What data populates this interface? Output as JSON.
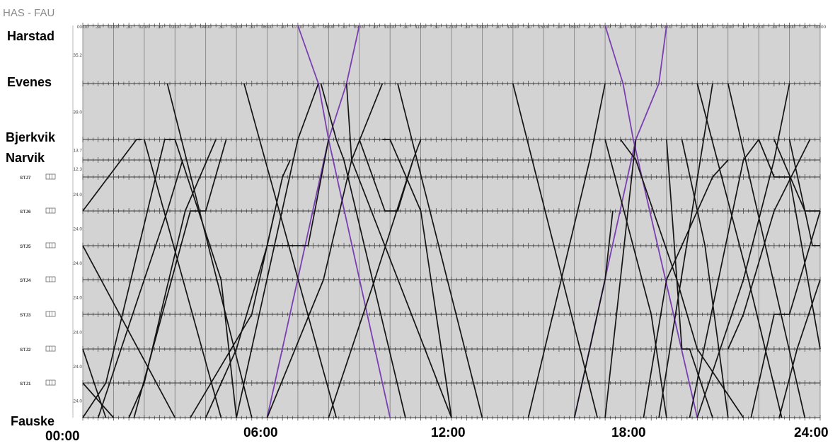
{
  "title": "HAS - FAU",
  "colors": {
    "plot_bg": "#d3d3d3",
    "grid": "#7c7c7c",
    "station_line": "#3a3a3a",
    "train": "#141414",
    "highlight_train": "#7a3fb0"
  },
  "time_ticks": [
    "00.00",
    ".30",
    "01.00",
    ".30",
    "02.00",
    ".30",
    "03.00",
    ".30",
    "04.00",
    ".30",
    "05.00",
    ".30",
    "06.00",
    ".30",
    "07.00",
    ".30",
    "08.00",
    ".30",
    "09.00",
    ".30",
    "10.00",
    ".30",
    "11.00",
    ".30",
    "12.00",
    ".30",
    "13.00",
    ".30",
    "14.00",
    ".30",
    "15.00",
    ".30",
    "16.00",
    ".30",
    "17.00",
    ".30",
    "18.00",
    ".30",
    "19.00",
    ".30",
    "20.00",
    ".30",
    "21.00",
    ".30",
    "22.00",
    ".30",
    "23.00",
    ".30",
    "00.00"
  ],
  "stations": [
    {
      "id": "harstad",
      "label": "Harstad",
      "code": ""
    },
    {
      "id": "evenes",
      "label": "Evenes",
      "code": ""
    },
    {
      "id": "bjerkvik",
      "label": "Bjerkvik",
      "code": ""
    },
    {
      "id": "narvik",
      "label": "Narvik",
      "code": ""
    },
    {
      "id": "stj7",
      "label": "",
      "code": "STJ7"
    },
    {
      "id": "stj6",
      "label": "",
      "code": "STJ6"
    },
    {
      "id": "stj5",
      "label": "",
      "code": "STJ5"
    },
    {
      "id": "stj4",
      "label": "",
      "code": "STJ4"
    },
    {
      "id": "stj3",
      "label": "",
      "code": "STJ3"
    },
    {
      "id": "stj2",
      "label": "",
      "code": "STJ2"
    },
    {
      "id": "stj1",
      "label": "",
      "code": "STJ1"
    },
    {
      "id": "fauske",
      "label": "Fauske",
      "code": ""
    }
  ],
  "segment_distances": [
    "35.2",
    "39.0",
    "13.7",
    "12.3",
    "24.0",
    "24.0",
    "24.0",
    "24.0",
    "24.0",
    "24.0",
    "24.0"
  ],
  "hour_labels": [
    "00:00",
    "06:00",
    "12:00",
    "18:00",
    "24:00"
  ],
  "trains": [
    {
      "kind": "highlight",
      "points": [
        [
          "07:00",
          0
        ],
        [
          "07:40",
          1
        ],
        [
          "08:00",
          2
        ],
        [
          "10:00",
          11
        ]
      ]
    },
    {
      "kind": "highlight",
      "points": [
        [
          "06:00",
          11
        ],
        [
          "08:00",
          2
        ],
        [
          "08:35",
          1
        ],
        [
          "09:00",
          0
        ]
      ]
    },
    {
      "kind": "highlight",
      "points": [
        [
          "17:00",
          0
        ],
        [
          "17:35",
          1
        ],
        [
          "17:55",
          2
        ],
        [
          "20:00",
          11
        ]
      ]
    },
    {
      "kind": "highlight",
      "points": [
        [
          "16:00",
          11
        ],
        [
          "18:00",
          2
        ],
        [
          "18:45",
          1
        ],
        [
          "19:00",
          0
        ]
      ]
    },
    {
      "kind": "regular",
      "points": [
        [
          "02:45",
          1
        ],
        [
          "05:30",
          11
        ]
      ]
    },
    {
      "kind": "regular",
      "points": [
        [
          "05:00",
          11
        ],
        [
          "07:00",
          2
        ],
        [
          "07:40",
          1
        ]
      ]
    },
    {
      "kind": "regular",
      "points": [
        [
          "05:15",
          1
        ],
        [
          "08:15",
          11
        ]
      ]
    },
    {
      "kind": "regular",
      "points": [
        [
          "07:45",
          1
        ],
        [
          "08:15",
          2
        ],
        [
          "08:30",
          3
        ],
        [
          "10:30",
          11
        ]
      ]
    },
    {
      "kind": "regular",
      "points": [
        [
          "10:15",
          1
        ],
        [
          "13:00",
          11
        ]
      ]
    },
    {
      "kind": "regular",
      "points": [
        [
          "09:45",
          1
        ],
        [
          "08:45",
          3
        ],
        [
          "07:50",
          7
        ],
        [
          "06:00",
          11
        ]
      ]
    },
    {
      "kind": "regular",
      "points": [
        [
          "08:35",
          1
        ],
        [
          "08:45",
          3
        ],
        [
          "12:00",
          11
        ]
      ]
    },
    {
      "kind": "regular",
      "points": [
        [
          "00:00",
          5
        ],
        [
          "01:45",
          2
        ],
        [
          "01:55",
          2
        ]
      ]
    },
    {
      "kind": "regular",
      "points": [
        [
          "00:00",
          11
        ],
        [
          "00:45",
          10
        ],
        [
          "02:40",
          2
        ],
        [
          "03:00",
          2
        ]
      ]
    },
    {
      "kind": "regular",
      "points": [
        [
          "01:40",
          11
        ],
        [
          "03:30",
          5
        ],
        [
          "04:00",
          5
        ],
        [
          "04:40",
          2
        ]
      ]
    },
    {
      "kind": "regular",
      "points": [
        [
          "02:00",
          2
        ],
        [
          "04:30",
          11
        ]
      ]
    },
    {
      "kind": "regular",
      "points": [
        [
          "04:20",
          2
        ],
        [
          "03:20",
          5
        ],
        [
          "02:00",
          10
        ],
        [
          "01:30",
          11
        ]
      ]
    },
    {
      "kind": "regular",
      "points": [
        [
          "00:00",
          6
        ],
        [
          "03:00",
          11
        ]
      ]
    },
    {
      "kind": "regular",
      "points": [
        [
          "00:00",
          9
        ],
        [
          "00:45",
          11
        ]
      ]
    },
    {
      "kind": "regular",
      "points": [
        [
          "00:00",
          10
        ],
        [
          "01:00",
          11
        ]
      ]
    },
    {
      "kind": "regular",
      "points": [
        [
          "03:00",
          2
        ],
        [
          "04:30",
          7
        ],
        [
          "05:00",
          11
        ]
      ]
    },
    {
      "kind": "regular",
      "points": [
        [
          "06:00",
          6
        ],
        [
          "07:20",
          6
        ],
        [
          "08:00",
          2
        ]
      ]
    },
    {
      "kind": "regular",
      "points": [
        [
          "09:00",
          2
        ],
        [
          "09:50",
          5
        ],
        [
          "10:15",
          5
        ],
        [
          "10:45",
          3
        ],
        [
          "11:00",
          2
        ]
      ]
    },
    {
      "kind": "regular",
      "points": [
        [
          "10:45",
          3
        ],
        [
          "09:30",
          7
        ],
        [
          "08:00",
          11
        ]
      ]
    },
    {
      "kind": "regular",
      "points": [
        [
          "14:00",
          1
        ],
        [
          "16:45",
          11
        ]
      ]
    },
    {
      "kind": "regular",
      "points": [
        [
          "14:30",
          11
        ],
        [
          "16:30",
          3
        ],
        [
          "17:00",
          1
        ]
      ]
    },
    {
      "kind": "regular",
      "points": [
        [
          "17:00",
          2
        ],
        [
          "18:30",
          8
        ],
        [
          "19:00",
          11
        ]
      ]
    },
    {
      "kind": "regular",
      "points": [
        [
          "18:00",
          2
        ],
        [
          "17:00",
          11
        ]
      ]
    },
    {
      "kind": "regular",
      "points": [
        [
          "19:00",
          2
        ],
        [
          "19:30",
          9
        ],
        [
          "19:45",
          9
        ],
        [
          "20:30",
          11
        ]
      ]
    },
    {
      "kind": "regular",
      "points": [
        [
          "19:30",
          2
        ],
        [
          "20:15",
          6
        ],
        [
          "21:00",
          11
        ]
      ]
    },
    {
      "kind": "regular",
      "points": [
        [
          "20:00",
          1
        ],
        [
          "21:40",
          7
        ],
        [
          "22:45",
          11
        ]
      ]
    },
    {
      "kind": "regular",
      "points": [
        [
          "18:45",
          11
        ],
        [
          "20:30",
          1
        ]
      ]
    },
    {
      "kind": "regular",
      "points": [
        [
          "19:45",
          11
        ],
        [
          "21:30",
          3
        ],
        [
          "22:00",
          2
        ]
      ]
    },
    {
      "kind": "regular",
      "points": [
        [
          "21:00",
          1
        ],
        [
          "23:30",
          11
        ]
      ]
    },
    {
      "kind": "regular",
      "points": [
        [
          "21:45",
          11
        ],
        [
          "22:30",
          8
        ],
        [
          "23:00",
          8
        ],
        [
          "24:00",
          5
        ]
      ]
    },
    {
      "kind": "regular",
      "points": [
        [
          "22:00",
          2
        ],
        [
          "22:30",
          4
        ],
        [
          "23:00",
          4
        ],
        [
          "24:00",
          9
        ]
      ]
    },
    {
      "kind": "regular",
      "points": [
        [
          "23:00",
          1
        ],
        [
          "22:30",
          3
        ],
        [
          "21:30",
          7
        ],
        [
          "20:00",
          11
        ]
      ]
    },
    {
      "kind": "regular",
      "points": [
        [
          "22:30",
          2
        ],
        [
          "23:30",
          5
        ],
        [
          "24:00",
          5
        ]
      ]
    },
    {
      "kind": "regular",
      "points": [
        [
          "23:00",
          2
        ],
        [
          "23:45",
          6
        ],
        [
          "24:00",
          6
        ]
      ]
    },
    {
      "kind": "regular",
      "points": [
        [
          "22:40",
          11
        ],
        [
          "23:15",
          9
        ],
        [
          "24:00",
          7
        ]
      ]
    },
    {
      "kind": "regular",
      "points": [
        [
          "23:40",
          2
        ],
        [
          "22:30",
          5
        ],
        [
          "21:30",
          8
        ],
        [
          "21:00",
          9
        ]
      ]
    },
    {
      "kind": "regular",
      "points": [
        [
          "12:00",
          11
        ],
        [
          "11:00",
          5
        ],
        [
          "10:00",
          2
        ],
        [
          "09:45",
          2
        ]
      ]
    },
    {
      "kind": "regular",
      "points": [
        [
          "16:00",
          11
        ],
        [
          "17:00",
          7
        ],
        [
          "17:15",
          5
        ]
      ]
    },
    {
      "kind": "regular",
      "points": [
        [
          "17:30",
          2
        ],
        [
          "18:00",
          3
        ],
        [
          "19:20",
          7
        ],
        [
          "20:00",
          9
        ],
        [
          "21:30",
          11
        ]
      ]
    },
    {
      "kind": "regular",
      "points": [
        [
          "18:15",
          11
        ],
        [
          "19:00",
          7
        ],
        [
          "20:30",
          4
        ],
        [
          "21:00",
          3
        ]
      ]
    },
    {
      "kind": "regular",
      "points": [
        [
          "00:30",
          11
        ],
        [
          "02:00",
          7
        ],
        [
          "02:45",
          5
        ],
        [
          "03:15",
          3
        ]
      ]
    },
    {
      "kind": "regular",
      "points": [
        [
          "04:00",
          11
        ],
        [
          "05:00",
          9
        ],
        [
          "06:00",
          6
        ],
        [
          "06:30",
          4
        ],
        [
          "06:45",
          3
        ]
      ]
    },
    {
      "kind": "regular",
      "points": [
        [
          "03:30",
          11
        ],
        [
          "05:30",
          8
        ],
        [
          "06:15",
          5
        ]
      ]
    }
  ]
}
